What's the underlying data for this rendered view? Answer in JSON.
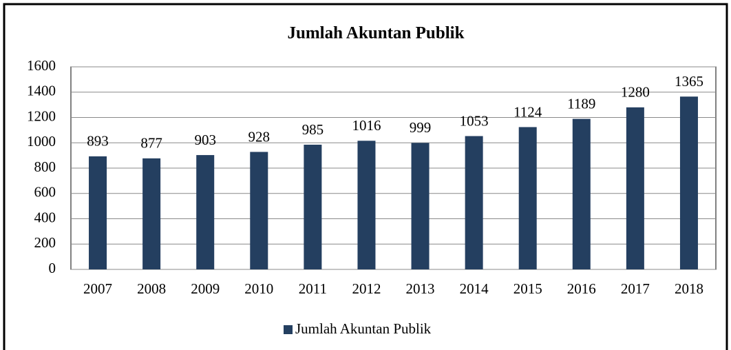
{
  "chart_data": {
    "type": "bar",
    "title": "Jumlah Akuntan Publik",
    "categories": [
      "2007",
      "2008",
      "2009",
      "2010",
      "2011",
      "2012",
      "2013",
      "2014",
      "2015",
      "2016",
      "2017",
      "2018"
    ],
    "series": [
      {
        "name": "Jumlah Akuntan Publik",
        "color": "#243f60",
        "values": [
          893,
          877,
          903,
          928,
          985,
          1016,
          999,
          1053,
          1124,
          1189,
          1280,
          1365
        ]
      }
    ],
    "ylim": [
      0,
      1600
    ],
    "yticks": [
      0,
      200,
      400,
      600,
      800,
      1000,
      1200,
      1400,
      1600
    ],
    "grid": true,
    "legend": "bottom"
  }
}
